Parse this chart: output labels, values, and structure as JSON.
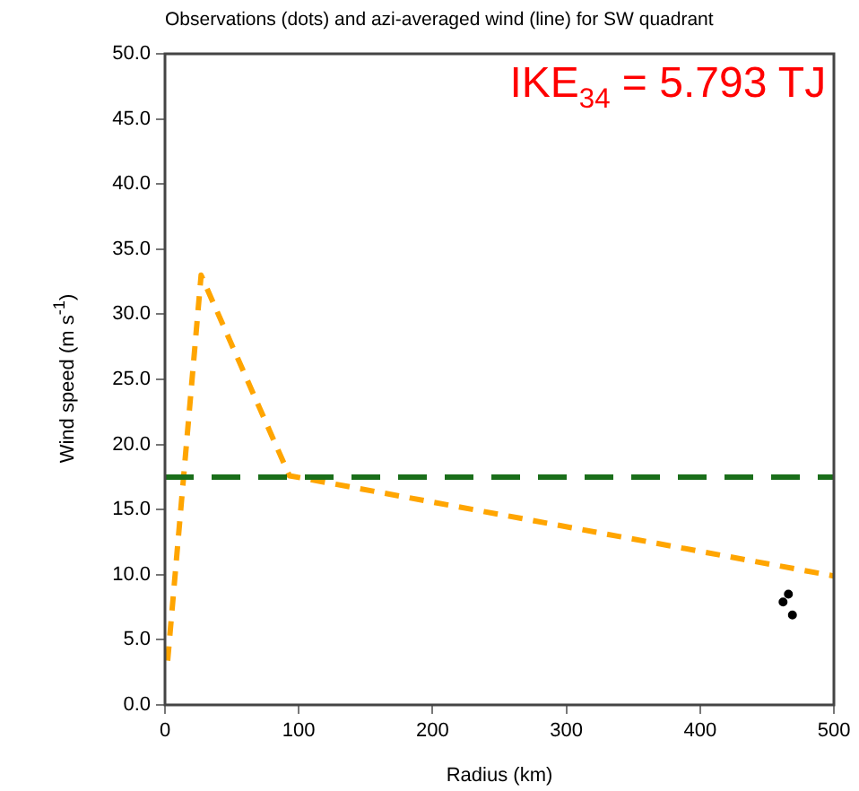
{
  "chart_data": {
    "type": "line",
    "title": "Observations (dots) and azi-averaged wind (line) for SW quadrant",
    "xlabel": "Radius (km)",
    "ylabel": "Wind speed (m s$^{-1}$)",
    "annotations": [
      "IKE$_{34}$ = 5.793 TJ"
    ],
    "series": [
      {
        "color": "#ffa500",
        "line_style": "dashed",
        "marker": "none",
        "x": [
          2,
          27,
          93,
          500
        ],
        "values": [
          3.4,
          33.0,
          17.6,
          9.9
        ]
      },
      {
        "type": "scatter",
        "color": "#000000",
        "marker": "circle",
        "x": [
          466,
          462,
          469
        ],
        "values": [
          8.5,
          7.9,
          6.9
        ]
      }
    ],
    "ref_lines": [
      {
        "axis": "y",
        "value": 17.5,
        "color": "#1a6e1a",
        "line_style": "dashed"
      }
    ],
    "xlim": [
      0,
      500
    ],
    "xticks": [
      0,
      100,
      200,
      300,
      400,
      500
    ],
    "ylim": [
      0,
      50
    ],
    "yticks": [
      {
        "value": 0,
        "label": "0.0"
      },
      {
        "value": 5,
        "label": "5.0"
      },
      {
        "value": 10,
        "label": "10.0"
      },
      {
        "value": 15,
        "label": "15.0"
      },
      {
        "value": 20,
        "label": "20.0"
      },
      {
        "value": 25,
        "label": "25.0"
      },
      {
        "value": 30,
        "label": "30.0"
      },
      {
        "value": 35,
        "label": "35.0"
      },
      {
        "value": 40,
        "label": "40.0"
      },
      {
        "value": 45,
        "label": "45.0"
      },
      {
        "value": 50,
        "label": "50.0"
      }
    ],
    "grid": false,
    "legend": false
  }
}
